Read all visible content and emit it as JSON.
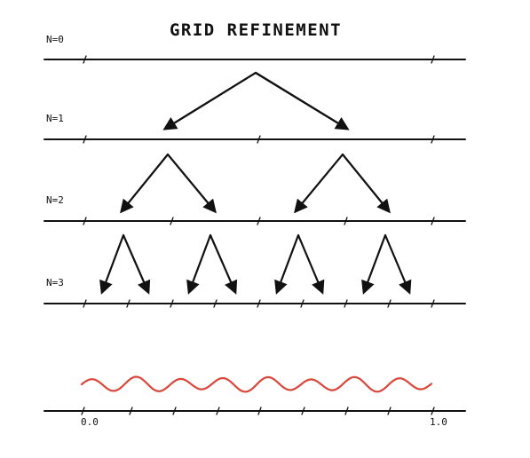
{
  "title": "GRID REFINEMENT",
  "levels": [
    {
      "label": "N=0"
    },
    {
      "label": "N=1"
    },
    {
      "label": "N=2"
    },
    {
      "label": "N=3"
    }
  ],
  "axis": {
    "start_label": "0.0",
    "end_label": "1.0"
  },
  "colors": {
    "ink": "#111111",
    "wave": "#d9463a"
  }
}
